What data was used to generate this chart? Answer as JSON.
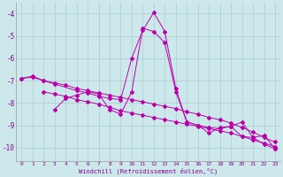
{
  "xlabel": "Windchill (Refroidissement éolien,°C)",
  "bg_color": "#cce8ea",
  "line_color": "#bb00aa",
  "grid_color": "#aaccd0",
  "x_min": -0.5,
  "x_max": 23.5,
  "y_min": -10.6,
  "y_max": -3.5,
  "yticks": [
    -10,
    -9,
    -8,
    -7,
    -6,
    -5,
    -4
  ],
  "xticks": [
    0,
    1,
    2,
    3,
    4,
    5,
    6,
    7,
    8,
    9,
    10,
    11,
    12,
    13,
    14,
    15,
    16,
    17,
    18,
    19,
    20,
    21,
    22,
    23
  ],
  "series": [
    {
      "x": [
        0,
        1,
        2,
        3,
        5,
        6,
        7,
        8,
        9,
        10,
        11,
        12,
        13,
        14,
        15,
        16,
        17,
        18,
        19,
        20,
        21,
        22,
        23
      ],
      "y": [
        -6.9,
        -6.8,
        -7.0,
        -7.15,
        -7.45,
        -7.55,
        -7.7,
        -7.8,
        -7.85,
        -6.0,
        -4.75,
        -3.95,
        -4.8,
        -7.35,
        -8.85,
        -9.0,
        -9.35,
        -9.1,
        -9.05,
        -9.5,
        -9.55,
        -9.85,
        -10.05
      ]
    },
    {
      "x": [
        0,
        1,
        2,
        3,
        4,
        5,
        6,
        7,
        8,
        9,
        10,
        11,
        12,
        13,
        14,
        15,
        16,
        17,
        18,
        19,
        20,
        21,
        22,
        23
      ],
      "y": [
        -6.9,
        -6.85,
        -7.0,
        -7.1,
        -7.2,
        -7.35,
        -7.45,
        -7.55,
        -7.65,
        -7.75,
        -7.85,
        -7.95,
        -8.05,
        -8.15,
        -8.25,
        -8.4,
        -8.5,
        -8.65,
        -8.75,
        -8.9,
        -9.1,
        -9.3,
        -9.55,
        -9.75
      ]
    },
    {
      "x": [
        2,
        3,
        4,
        5,
        6,
        7,
        8,
        9,
        10,
        11,
        12,
        13,
        14,
        15,
        16,
        17,
        18,
        19,
        20,
        21,
        22,
        23
      ],
      "y": [
        -7.5,
        -7.6,
        -7.7,
        -7.85,
        -7.95,
        -8.05,
        -8.2,
        -8.35,
        -8.45,
        -8.55,
        -8.65,
        -8.75,
        -8.85,
        -8.95,
        -9.05,
        -9.15,
        -9.25,
        -9.35,
        -9.5,
        -9.65,
        -9.8,
        -9.95
      ]
    },
    {
      "x": [
        3,
        4,
        5,
        6,
        7,
        8,
        9,
        10,
        11,
        12,
        13,
        14,
        15,
        16,
        17,
        18,
        19,
        20,
        21,
        22,
        23
      ],
      "y": [
        -8.3,
        -7.8,
        -7.65,
        -7.5,
        -7.6,
        -8.3,
        -8.5,
        -7.5,
        -4.65,
        -4.8,
        -5.3,
        -7.5,
        -8.85,
        -9.0,
        -9.1,
        -9.15,
        -9.05,
        -8.85,
        -9.55,
        -9.45,
        -10.05
      ]
    }
  ]
}
